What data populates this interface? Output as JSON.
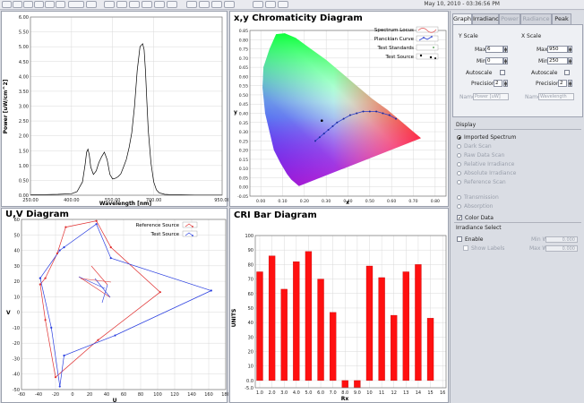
{
  "toolbar": {
    "date": "May 10, 2010 - 03:36:56 PM"
  },
  "spectrum": {
    "ylabel": "Power [uW/cm^2]",
    "xlabel": "Wavelength [nm]",
    "yticks": [
      "6.00",
      "5.50",
      "5.00",
      "4.50",
      "4.00",
      "3.50",
      "3.00",
      "2.50",
      "2.00",
      "1.50",
      "1.00",
      "0.50",
      "0.00"
    ],
    "xticks": [
      "250.00",
      "400.00",
      "550.00",
      "700.00",
      "950.00"
    ]
  },
  "chromaticity": {
    "title": "x,y Chromaticity Diagram",
    "xlabel": "x",
    "ylabel": "y",
    "yticks": [
      "0.85",
      "0.80",
      "0.75",
      "0.70",
      "0.65",
      "0.60",
      "0.55",
      "0.50",
      "0.45",
      "0.40",
      "0.35",
      "0.30",
      "0.25",
      "0.20",
      "0.15",
      "0.10",
      "0.05",
      "0.00",
      "-0.05"
    ],
    "xticks": [
      "0.00",
      "0.10",
      "0.20",
      "0.30",
      "0.40",
      "0.50",
      "0.60",
      "0.70",
      "0.80"
    ],
    "legend": [
      "Spectrum Locus",
      "Planckian Curve",
      "Test Standards",
      "Test Source"
    ]
  },
  "uv": {
    "title": "U,V Diagram",
    "xlabel": "U",
    "ylabel": "V",
    "yticks": [
      "60",
      "50",
      "40",
      "30",
      "20",
      "10",
      "0",
      "-10",
      "-20",
      "-30",
      "-40",
      "-50"
    ],
    "xticks": [
      "-60",
      "-40",
      "-20",
      "0",
      "20",
      "40",
      "60",
      "80",
      "100",
      "120",
      "140",
      "160",
      "180"
    ],
    "legend": [
      "Reference Source",
      "Test Source"
    ]
  },
  "cri": {
    "title": "CRI Bar Diagram",
    "xlabel": "Rx",
    "ylabel": "UNITS",
    "yticks": [
      "100",
      "90",
      "80",
      "70",
      "60",
      "50",
      "40",
      "30",
      "20",
      "10",
      "0.0",
      "-5.0"
    ],
    "xticks": [
      "1.0",
      "2.0",
      "3.0",
      "4.0",
      "5.0",
      "6.0",
      "7.0",
      "8.0",
      "9.0",
      "10",
      "11",
      "12",
      "13",
      "14",
      "15",
      "16"
    ]
  },
  "chart_data": [
    {
      "type": "line",
      "name": "spectrum",
      "xlabel": "Wavelength [nm]",
      "ylabel": "Power [uW/cm^2]",
      "xlim": [
        250,
        950
      ],
      "ylim": [
        0,
        6
      ],
      "x": [
        250,
        300,
        350,
        400,
        420,
        440,
        450,
        455,
        460,
        465,
        470,
        480,
        490,
        500,
        510,
        520,
        530,
        540,
        550,
        560,
        570,
        580,
        590,
        600,
        610,
        620,
        630,
        640,
        650,
        660,
        665,
        670,
        675,
        680,
        690,
        700,
        710,
        720,
        740,
        760,
        800,
        850,
        900,
        950
      ],
      "y": [
        0.02,
        0.02,
        0.03,
        0.05,
        0.12,
        0.45,
        1.05,
        1.45,
        1.55,
        1.35,
        0.95,
        0.7,
        0.82,
        1.1,
        1.3,
        1.45,
        1.2,
        0.7,
        0.55,
        0.57,
        0.62,
        0.72,
        0.95,
        1.2,
        1.6,
        2.1,
        3.0,
        4.2,
        5.0,
        5.1,
        4.9,
        4.2,
        3.2,
        2.2,
        1.1,
        0.45,
        0.18,
        0.08,
        0.03,
        0.02,
        0.02,
        0.01,
        0.01,
        0.01
      ]
    },
    {
      "type": "scatter",
      "name": "chromaticity",
      "title": "x,y Chromaticity Diagram",
      "xlabel": "x",
      "ylabel": "y",
      "xlim": [
        -0.05,
        0.85
      ],
      "ylim": [
        -0.05,
        0.85
      ],
      "series": [
        {
          "name": "Planckian Curve",
          "x": [
            0.25,
            0.27,
            0.29,
            0.31,
            0.33,
            0.35,
            0.38,
            0.41,
            0.44,
            0.47,
            0.5,
            0.53,
            0.56,
            0.59,
            0.62
          ],
          "y": [
            0.25,
            0.27,
            0.29,
            0.31,
            0.33,
            0.35,
            0.37,
            0.39,
            0.4,
            0.41,
            0.41,
            0.41,
            0.4,
            0.39,
            0.37
          ]
        },
        {
          "name": "Test Source",
          "x": [
            0.28
          ],
          "y": [
            0.36
          ]
        }
      ]
    },
    {
      "type": "line",
      "name": "uv",
      "title": "U,V Diagram",
      "xlabel": "U",
      "ylabel": "V",
      "xlim": [
        -60,
        180
      ],
      "ylim": [
        -50,
        60
      ],
      "series": [
        {
          "name": "Reference Source",
          "u": [
            -38,
            -32,
            -18,
            -8,
            28,
            45,
            103,
            30,
            -20,
            -32,
            -38
          ],
          "v": [
            18,
            22,
            38,
            55,
            59,
            42,
            13,
            -18,
            -42,
            -5,
            18
          ]
        },
        {
          "name": "Test Source",
          "u": [
            -38,
            -15,
            -10,
            28,
            45,
            163,
            50,
            -10,
            -15,
            -25,
            -38
          ],
          "v": [
            22,
            40,
            42,
            57,
            35,
            14,
            -15,
            -28,
            -48,
            -10,
            22
          ]
        }
      ]
    },
    {
      "type": "bar",
      "name": "cri",
      "title": "CRI Bar Diagram",
      "xlabel": "Rx",
      "ylabel": "UNITS",
      "ylim": [
        -5,
        100
      ],
      "categories": [
        "1.0",
        "2.0",
        "3.0",
        "4.0",
        "5.0",
        "6.0",
        "7.0",
        "8.0",
        "9.0",
        "10",
        "11",
        "12",
        "13",
        "14",
        "15"
      ],
      "values": [
        75,
        86,
        63,
        82,
        89,
        70,
        47,
        -5,
        -5,
        79,
        71,
        45,
        75,
        80,
        43
      ]
    }
  ],
  "sidebar": {
    "tabs": [
      "Graph",
      "Irradiance",
      "Power",
      "Radiance",
      "Peak"
    ],
    "yscale": {
      "title": "Y Scale",
      "max_label": "Max",
      "max": "6",
      "min_label": "Min",
      "min": "0",
      "autoscale": "Autoscale",
      "precision_label": "Precision",
      "precision": "2",
      "name_label": "Name",
      "name": "Power [uW]"
    },
    "xscale": {
      "title": "X Scale",
      "max_label": "Max",
      "max": "950",
      "min_label": "Min",
      "min": "250",
      "autoscale": "Autoscale",
      "precision_label": "Precision",
      "precision": "2",
      "name_label": "Name",
      "name": "Wavelength"
    },
    "display_title": "Display",
    "display_options": [
      "Imported Spectrum",
      "Dark Scan",
      "Raw Data Scan",
      "Relative Irradiance",
      "Absolute Irradiance",
      "Reference Scan"
    ],
    "display_options2": [
      "Transmission",
      "Absorption"
    ],
    "color_data": "Color Data",
    "irr_title": "Irradiance Select",
    "enable": "Enable",
    "show_labels": "Show Labels",
    "min_wl_label": "Min WL",
    "min_wl": "0.000",
    "max_wl_label": "Max WL",
    "max_wl": "0.000"
  }
}
